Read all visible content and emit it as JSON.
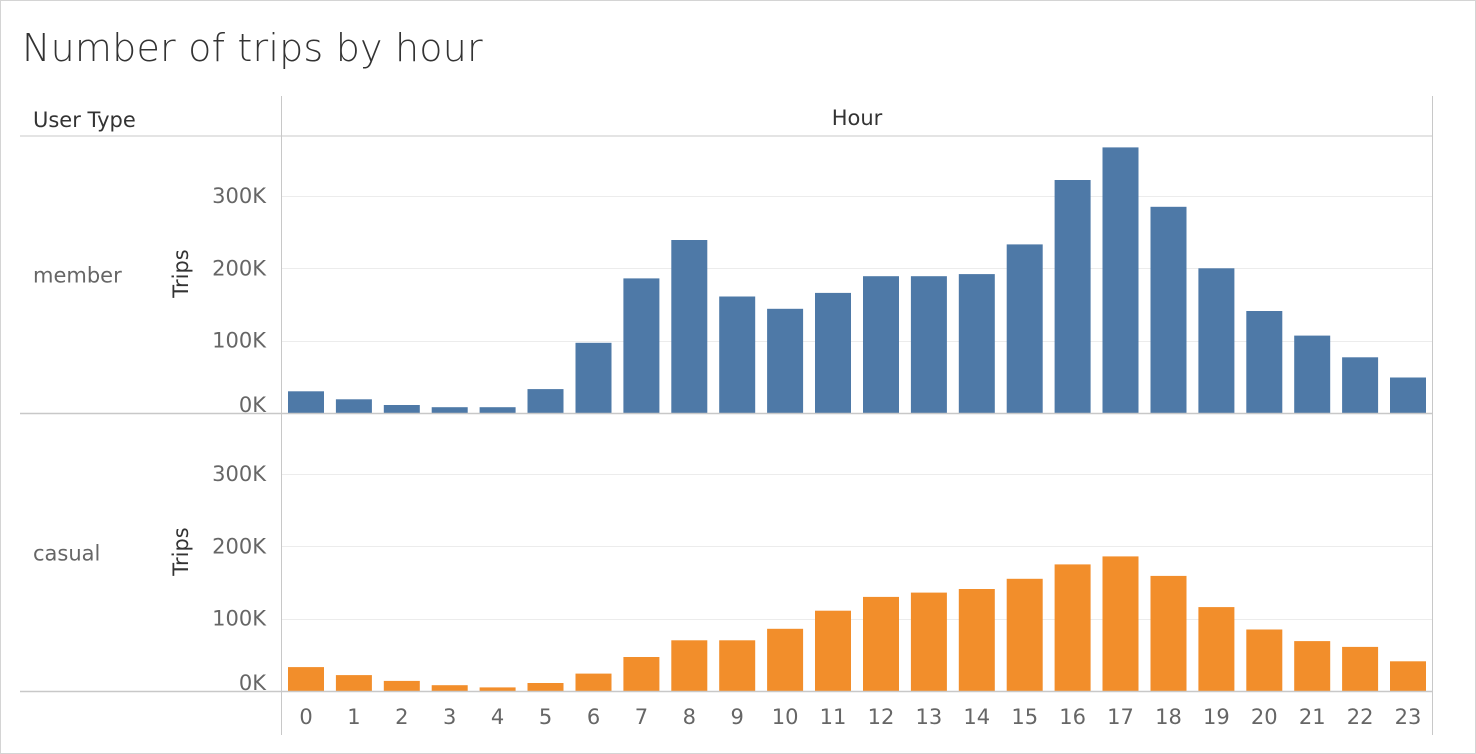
{
  "title": "Number of trips by hour",
  "chart_data": {
    "type": "bar",
    "title": "Number of trips by hour",
    "row_header": "User Type",
    "column_header": "Hour",
    "xlabel": "Hour",
    "ylabel": "Trips",
    "categories": [
      "0",
      "1",
      "2",
      "3",
      "4",
      "5",
      "6",
      "7",
      "8",
      "9",
      "10",
      "11",
      "12",
      "13",
      "14",
      "15",
      "16",
      "17",
      "18",
      "19",
      "20",
      "21",
      "22",
      "23"
    ],
    "ylim": [
      0,
      380000
    ],
    "yticks": [
      0,
      100000,
      200000,
      300000
    ],
    "ytick_labels": [
      "0K",
      "100K",
      "200K",
      "300K"
    ],
    "grid": true,
    "series": [
      {
        "name": "member",
        "color": "#4e79a7",
        "values": [
          30000,
          19000,
          11000,
          8000,
          8000,
          33000,
          97000,
          186000,
          239000,
          161000,
          144000,
          166000,
          189000,
          189000,
          192000,
          233000,
          322000,
          367000,
          285000,
          200000,
          141000,
          107000,
          77000,
          49000
        ]
      },
      {
        "name": "casual",
        "color": "#f28e2b",
        "values": [
          33000,
          22000,
          14000,
          8000,
          5000,
          11000,
          24000,
          47000,
          70000,
          70000,
          86000,
          111000,
          130000,
          136000,
          141000,
          155000,
          175000,
          186000,
          159000,
          116000,
          85000,
          69000,
          61000,
          41000
        ]
      }
    ]
  }
}
